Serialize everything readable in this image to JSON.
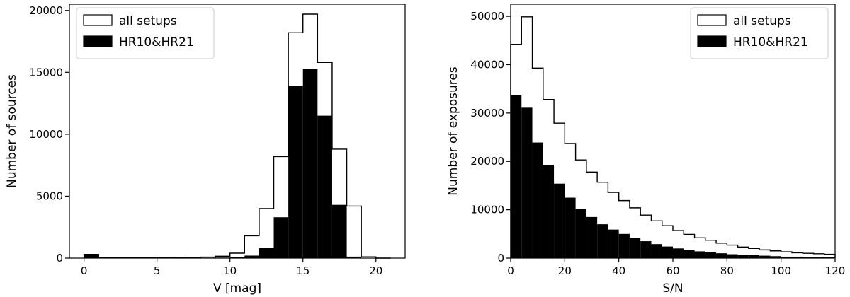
{
  "chart_data": [
    {
      "type": "histogram",
      "xlabel": "V [mag]",
      "ylabel": "Number of sources",
      "xlim": [
        -1,
        22
      ],
      "ylim": [
        0,
        20500
      ],
      "xticks": [
        0,
        5,
        10,
        15,
        20
      ],
      "yticks": [
        0,
        5000,
        10000,
        15000,
        20000
      ],
      "grid": false,
      "legend_position": "top-left",
      "bin_edges": [
        0,
        1,
        2,
        3,
        4,
        5,
        6,
        7,
        8,
        9,
        10,
        11,
        12,
        13,
        14,
        15,
        16,
        17,
        18,
        19,
        20,
        21
      ],
      "series": [
        {
          "name": "all setups",
          "style": "step-outline",
          "color": "#000000",
          "values": [
            300,
            20,
            20,
            20,
            20,
            30,
            40,
            60,
            80,
            150,
            400,
            1800,
            4000,
            8200,
            18200,
            19700,
            15800,
            8800,
            4200,
            100,
            0
          ]
        },
        {
          "name": "HR10&HR21",
          "style": "filled",
          "color": "#000000",
          "values": [
            280,
            15,
            15,
            15,
            15,
            20,
            20,
            30,
            30,
            40,
            60,
            200,
            800,
            3300,
            13900,
            15300,
            11500,
            4300,
            120,
            10,
            0
          ]
        }
      ]
    },
    {
      "type": "histogram",
      "xlabel": "S/N",
      "ylabel": "Number of exposures",
      "xlim": [
        0,
        120
      ],
      "ylim": [
        0,
        52500
      ],
      "xticks": [
        0,
        20,
        40,
        60,
        80,
        100,
        120
      ],
      "yticks": [
        0,
        10000,
        20000,
        30000,
        40000,
        50000
      ],
      "grid": false,
      "legend_position": "top-right",
      "bin_edges": [
        0,
        4,
        8,
        12,
        16,
        20,
        24,
        28,
        32,
        36,
        40,
        44,
        48,
        52,
        56,
        60,
        64,
        68,
        72,
        76,
        80,
        84,
        88,
        92,
        96,
        100,
        104,
        108,
        112,
        116,
        120
      ],
      "series": [
        {
          "name": "all setups",
          "style": "step-outline",
          "color": "#000000",
          "values": [
            44200,
            49900,
            39300,
            32800,
            27900,
            23700,
            20300,
            17800,
            15700,
            13600,
            11900,
            10400,
            8900,
            7700,
            6700,
            5700,
            4900,
            4200,
            3700,
            3100,
            2700,
            2300,
            2000,
            1700,
            1500,
            1300,
            1100,
            1000,
            900,
            800
          ]
        },
        {
          "name": "HR10&HR21",
          "style": "filled",
          "color": "#000000",
          "values": [
            33700,
            31100,
            23900,
            19300,
            15400,
            12500,
            10100,
            8500,
            7000,
            5900,
            5000,
            4200,
            3500,
            2900,
            2400,
            2000,
            1700,
            1400,
            1200,
            1000,
            800,
            700,
            600,
            500,
            400,
            300,
            300,
            200,
            200,
            150
          ]
        }
      ]
    }
  ]
}
